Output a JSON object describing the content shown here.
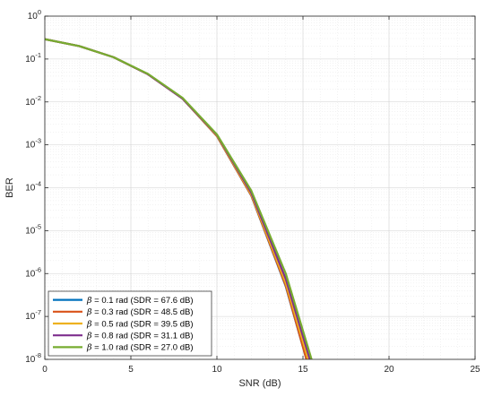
{
  "chart_data": {
    "type": "line",
    "title": "",
    "xlabel": "SNR (dB)",
    "ylabel": "BER",
    "xlim": [
      0,
      25
    ],
    "ylim": [
      1e-08,
      1
    ],
    "yscale": "log",
    "grid": true,
    "minor_grid": true,
    "legend_position": "bottom-left",
    "x_ticks": [
      0,
      5,
      10,
      15,
      20,
      25
    ],
    "y_ticks": [
      {
        "value": 1,
        "base": "10",
        "exp": "0"
      },
      {
        "value": 0.1,
        "base": "10",
        "exp": "-1"
      },
      {
        "value": 0.01,
        "base": "10",
        "exp": "-2"
      },
      {
        "value": 0.001,
        "base": "10",
        "exp": "-3"
      },
      {
        "value": 0.0001,
        "base": "10",
        "exp": "-4"
      },
      {
        "value": 1e-05,
        "base": "10",
        "exp": "-5"
      },
      {
        "value": 1e-06,
        "base": "10",
        "exp": "-6"
      },
      {
        "value": 1e-07,
        "base": "10",
        "exp": "-7"
      },
      {
        "value": 1e-08,
        "base": "10",
        "exp": "-8"
      }
    ],
    "series": [
      {
        "name": "β = 0.1 rad (SDR = 67.6 dB)",
        "greek": "β",
        "label_rest": " = 0.1 rad (SDR = 67.6 dB)",
        "color": "#0072BD",
        "x": [
          0,
          2,
          4,
          6,
          8,
          10,
          12,
          14,
          15.2
        ],
        "y": [
          0.29,
          0.2,
          0.11,
          0.044,
          0.012,
          0.0016,
          6.5e-05,
          5e-07,
          1e-08
        ]
      },
      {
        "name": "β = 0.3 rad (SDR = 48.5 dB)",
        "greek": "β",
        "label_rest": " = 0.3 rad (SDR = 48.5 dB)",
        "color": "#D95319",
        "x": [
          0,
          2,
          4,
          6,
          8,
          10,
          12,
          14,
          15.2
        ],
        "y": [
          0.29,
          0.2,
          0.11,
          0.044,
          0.012,
          0.0016,
          6.6e-05,
          5.2e-07,
          1e-08
        ]
      },
      {
        "name": "β = 0.5 rad (SDR = 39.5 dB)",
        "greek": "β",
        "label_rest": " = 0.5 rad (SDR = 39.5 dB)",
        "color": "#EDB120",
        "x": [
          0,
          2,
          4,
          6,
          8,
          10,
          12,
          14,
          15.3
        ],
        "y": [
          0.29,
          0.2,
          0.11,
          0.044,
          0.012,
          0.00165,
          7e-05,
          6e-07,
          1e-08
        ]
      },
      {
        "name": "β = 0.8 rad (SDR = 31.1 dB)",
        "greek": "β",
        "label_rest": " = 0.8 rad (SDR = 31.1 dB)",
        "color": "#7E2F8E",
        "x": [
          0,
          2,
          4,
          6,
          8,
          10,
          12,
          14,
          15.4
        ],
        "y": [
          0.29,
          0.2,
          0.11,
          0.044,
          0.012,
          0.0017,
          7.6e-05,
          7.5e-07,
          1e-08
        ]
      },
      {
        "name": "β = 1.0 rad (SDR = 27.0 dB)",
        "greek": "β",
        "label_rest": " = 1.0 rad (SDR = 27.0 dB)",
        "color": "#77AC30",
        "x": [
          0,
          2,
          4,
          6,
          8,
          10,
          12,
          14,
          15.5
        ],
        "y": [
          0.29,
          0.2,
          0.11,
          0.045,
          0.0125,
          0.00175,
          8.5e-05,
          1e-06,
          1e-08
        ]
      }
    ]
  }
}
